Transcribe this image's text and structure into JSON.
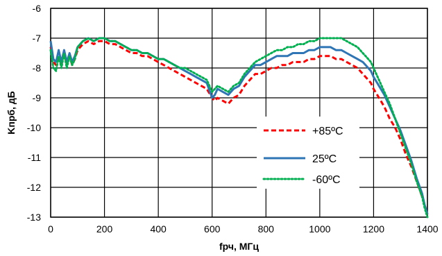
{
  "chart_data": {
    "type": "line",
    "title": "",
    "xlabel": "fрч, МГц",
    "ylabel": "Kпрб, дБ",
    "xlim": [
      0,
      1400
    ],
    "ylim": [
      -13,
      -6
    ],
    "x_ticks": [
      0,
      200,
      400,
      600,
      800,
      1000,
      1200,
      1400
    ],
    "y_ticks": [
      -6,
      -7,
      -8,
      -9,
      -10,
      -11,
      -12,
      -13
    ],
    "x_tick_labels": [
      "0",
      "200",
      "400",
      "600",
      "800",
      "1000",
      "1200",
      "1400"
    ],
    "y_tick_labels": [
      "-6",
      "-7",
      "-8",
      "-9",
      "-10",
      "-11",
      "-12",
      "-13"
    ],
    "grid": true,
    "legend_position": "lower-right",
    "series": [
      {
        "name": "+85ºC",
        "color": "#ff0000",
        "style": "dashed",
        "x": [
          0,
          10,
          20,
          30,
          40,
          50,
          60,
          70,
          80,
          90,
          100,
          120,
          140,
          160,
          180,
          200,
          220,
          240,
          260,
          280,
          300,
          320,
          340,
          360,
          380,
          400,
          420,
          440,
          460,
          480,
          500,
          520,
          540,
          560,
          580,
          600,
          610,
          620,
          640,
          660,
          680,
          700,
          720,
          740,
          760,
          780,
          800,
          820,
          840,
          860,
          880,
          900,
          920,
          940,
          960,
          980,
          1000,
          1020,
          1040,
          1060,
          1080,
          1100,
          1120,
          1140,
          1160,
          1180,
          1190,
          1200,
          1220,
          1240,
          1260,
          1280,
          1300,
          1320,
          1340,
          1360,
          1380,
          1390,
          1400
        ],
        "y": [
          -7.3,
          -7.8,
          -7.9,
          -7.6,
          -7.9,
          -7.5,
          -7.9,
          -7.6,
          -7.9,
          -7.7,
          -7.4,
          -7.2,
          -7.1,
          -7.2,
          -7.1,
          -7.1,
          -7.2,
          -7.2,
          -7.3,
          -7.4,
          -7.5,
          -7.5,
          -7.6,
          -7.6,
          -7.7,
          -7.8,
          -7.9,
          -8.0,
          -8.1,
          -8.2,
          -8.3,
          -8.4,
          -8.5,
          -8.6,
          -8.7,
          -9.0,
          -9.1,
          -9.0,
          -9.1,
          -9.2,
          -9.0,
          -8.9,
          -8.6,
          -8.4,
          -8.2,
          -8.2,
          -8.1,
          -8.0,
          -8.0,
          -7.9,
          -7.9,
          -7.8,
          -7.8,
          -7.8,
          -7.7,
          -7.7,
          -7.6,
          -7.6,
          -7.6,
          -7.7,
          -7.7,
          -7.8,
          -7.9,
          -8.0,
          -8.2,
          -8.4,
          -8.5,
          -8.7,
          -9.0,
          -9.3,
          -9.7,
          -10.0,
          -10.4,
          -10.9,
          -11.3,
          -11.8,
          -12.3,
          -12.6,
          -12.9
        ]
      },
      {
        "name": "25ºC",
        "color": "#2e75b6",
        "style": "solid",
        "x": [
          0,
          10,
          20,
          30,
          40,
          50,
          60,
          70,
          80,
          90,
          100,
          120,
          140,
          160,
          180,
          200,
          220,
          240,
          260,
          280,
          300,
          320,
          340,
          360,
          380,
          400,
          420,
          440,
          460,
          480,
          500,
          520,
          540,
          560,
          580,
          600,
          610,
          620,
          640,
          660,
          680,
          700,
          720,
          740,
          760,
          780,
          800,
          820,
          840,
          860,
          880,
          900,
          920,
          940,
          960,
          980,
          1000,
          1020,
          1040,
          1060,
          1080,
          1100,
          1120,
          1140,
          1160,
          1180,
          1190,
          1200,
          1220,
          1240,
          1260,
          1280,
          1300,
          1320,
          1340,
          1360,
          1380,
          1390,
          1400
        ],
        "y": [
          -7.1,
          -7.7,
          -7.8,
          -7.4,
          -7.8,
          -7.4,
          -7.8,
          -7.5,
          -7.8,
          -7.6,
          -7.3,
          -7.1,
          -7.0,
          -7.1,
          -7.0,
          -7.0,
          -7.1,
          -7.1,
          -7.2,
          -7.3,
          -7.4,
          -7.4,
          -7.5,
          -7.5,
          -7.6,
          -7.7,
          -7.7,
          -7.8,
          -7.9,
          -8.0,
          -8.1,
          -8.2,
          -8.3,
          -8.4,
          -8.5,
          -9.0,
          -8.9,
          -8.7,
          -8.8,
          -8.9,
          -8.7,
          -8.6,
          -8.3,
          -8.1,
          -7.9,
          -7.9,
          -7.8,
          -7.7,
          -7.6,
          -7.6,
          -7.6,
          -7.5,
          -7.5,
          -7.5,
          -7.4,
          -7.4,
          -7.3,
          -7.3,
          -7.3,
          -7.4,
          -7.4,
          -7.5,
          -7.6,
          -7.7,
          -7.8,
          -8.0,
          -8.1,
          -8.3,
          -8.6,
          -8.9,
          -9.3,
          -9.7,
          -10.1,
          -10.6,
          -11.1,
          -11.7,
          -12.2,
          -12.6,
          -12.9
        ]
      },
      {
        "name": "-60ºC",
        "color": "#00b050",
        "style": "dotted",
        "x": [
          0,
          10,
          20,
          30,
          40,
          50,
          60,
          70,
          80,
          90,
          100,
          120,
          140,
          160,
          180,
          200,
          220,
          240,
          260,
          280,
          300,
          320,
          340,
          360,
          380,
          400,
          420,
          440,
          460,
          480,
          500,
          520,
          540,
          560,
          580,
          600,
          610,
          620,
          640,
          660,
          680,
          700,
          720,
          740,
          760,
          780,
          800,
          820,
          840,
          860,
          880,
          900,
          920,
          940,
          960,
          980,
          1000,
          1020,
          1040,
          1060,
          1080,
          1100,
          1120,
          1140,
          1160,
          1180,
          1190,
          1200,
          1220,
          1240,
          1260,
          1280,
          1300,
          1320,
          1340,
          1360,
          1380,
          1390,
          1400
        ],
        "y": [
          -7.4,
          -8.0,
          -8.1,
          -7.6,
          -8.0,
          -7.5,
          -8.0,
          -7.6,
          -7.9,
          -7.7,
          -7.3,
          -7.1,
          -7.0,
          -7.1,
          -7.0,
          -7.0,
          -7.1,
          -7.1,
          -7.2,
          -7.3,
          -7.4,
          -7.4,
          -7.5,
          -7.5,
          -7.6,
          -7.7,
          -7.7,
          -7.8,
          -7.9,
          -8.0,
          -8.0,
          -8.1,
          -8.2,
          -8.3,
          -8.4,
          -8.8,
          -8.7,
          -8.6,
          -8.7,
          -8.8,
          -8.6,
          -8.5,
          -8.2,
          -8.0,
          -7.8,
          -7.7,
          -7.6,
          -7.5,
          -7.4,
          -7.4,
          -7.3,
          -7.3,
          -7.2,
          -7.2,
          -7.1,
          -7.1,
          -7.0,
          -7.0,
          -7.0,
          -7.0,
          -7.0,
          -7.1,
          -7.2,
          -7.3,
          -7.5,
          -7.7,
          -7.8,
          -8.0,
          -8.4,
          -8.8,
          -9.2,
          -9.7,
          -10.2,
          -10.7,
          -11.2,
          -11.8,
          -12.3,
          -12.7,
          -13.0
        ]
      }
    ]
  }
}
